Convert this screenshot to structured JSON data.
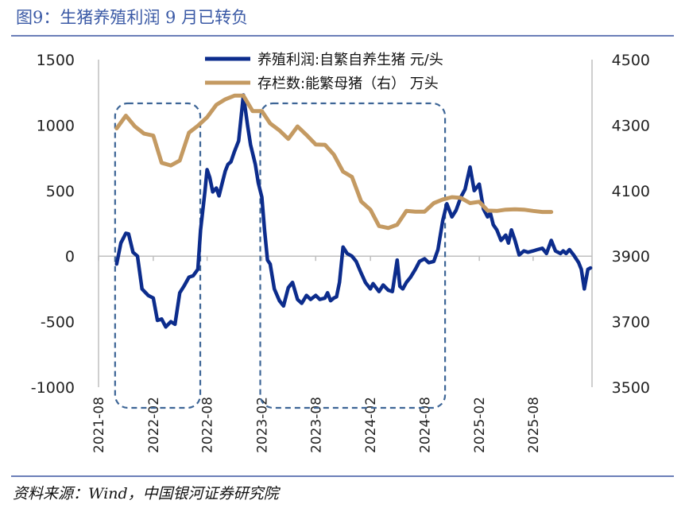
{
  "figure": {
    "title": "图9：生猪养殖利润 9 月已转负",
    "source": "资料来源：Wind，中国银河证券研究院"
  },
  "colors": {
    "profit": "#0c2c8c",
    "inventory": "#c49a62",
    "box": "#3d6596",
    "rule": "#6b7fb8"
  },
  "chart_data": {
    "type": "line",
    "title": "",
    "x_ticks": [
      "2021-08",
      "2022-02",
      "2022-08",
      "2023-02",
      "2023-08",
      "2024-02",
      "2024-08",
      "2025-02",
      "2025-08"
    ],
    "y_left": {
      "label": "",
      "range": [
        -1000,
        1500
      ],
      "ticks": [
        1500,
        1000,
        500,
        0,
        -500,
        -1000
      ]
    },
    "y_right": {
      "label": "",
      "range": [
        3500,
        4500
      ],
      "ticks": [
        4500,
        4300,
        4100,
        3900,
        3700,
        3500
      ]
    },
    "legend_position": "top-center",
    "series": [
      {
        "name": "养殖利润:自繁自养生猪 元/头",
        "axis": "left",
        "color": "#0c2c8c",
        "points": [
          [
            "2021-10",
            -60
          ],
          [
            "2021-10-15",
            100
          ],
          [
            "2021-11",
            175
          ],
          [
            "2021-11-10",
            170
          ],
          [
            "2021-11-25",
            30
          ],
          [
            "2021-12-10",
            0
          ],
          [
            "2021-12-25",
            -250
          ],
          [
            "2022-01-15",
            -300
          ],
          [
            "2022-02",
            -320
          ],
          [
            "2022-02-15",
            -490
          ],
          [
            "2022-03",
            -480
          ],
          [
            "2022-03-15",
            -540
          ],
          [
            "2022-04",
            -500
          ],
          [
            "2022-04-15",
            -520
          ],
          [
            "2022-05",
            -280
          ],
          [
            "2022-05-15",
            -230
          ],
          [
            "2022-06",
            -160
          ],
          [
            "2022-06-15",
            -150
          ],
          [
            "2022-07",
            -100
          ],
          [
            "2022-07-10",
            200
          ],
          [
            "2022-07-25",
            500
          ],
          [
            "2022-08",
            660
          ],
          [
            "2022-08-10",
            600
          ],
          [
            "2022-08-20",
            490
          ],
          [
            "2022-09",
            520
          ],
          [
            "2022-09-10",
            460
          ],
          [
            "2022-09-20",
            550
          ],
          [
            "2022-10",
            650
          ],
          [
            "2022-10-10",
            700
          ],
          [
            "2022-10-20",
            720
          ],
          [
            "2022-11",
            800
          ],
          [
            "2022-11-15",
            880
          ],
          [
            "2022-12",
            1230
          ],
          [
            "2022-12-15",
            1000
          ],
          [
            "2022-12-25",
            850
          ],
          [
            "2023-01-10",
            700
          ],
          [
            "2023-01-20",
            560
          ],
          [
            "2023-02",
            450
          ],
          [
            "2023-02-10",
            200
          ],
          [
            "2023-02-20",
            -30
          ],
          [
            "2023-03",
            -60
          ],
          [
            "2023-03-15",
            -250
          ],
          [
            "2023-04",
            -340
          ],
          [
            "2023-04-15",
            -380
          ],
          [
            "2023-05",
            -240
          ],
          [
            "2023-05-15",
            -200
          ],
          [
            "2023-06",
            -330
          ],
          [
            "2023-06-15",
            -360
          ],
          [
            "2023-07",
            -300
          ],
          [
            "2023-07-15",
            -330
          ],
          [
            "2023-08",
            -300
          ],
          [
            "2023-08-15",
            -330
          ],
          [
            "2023-09",
            -320
          ],
          [
            "2023-09-10",
            -280
          ],
          [
            "2023-09-20",
            -340
          ],
          [
            "2023-10",
            -320
          ],
          [
            "2023-10-10",
            -310
          ],
          [
            "2023-10-20",
            -200
          ],
          [
            "2023-11",
            70
          ],
          [
            "2023-11-15",
            20
          ],
          [
            "2023-12",
            0
          ],
          [
            "2023-12-15",
            -40
          ],
          [
            "2024-01",
            -130
          ],
          [
            "2024-01-15",
            -200
          ],
          [
            "2024-02",
            -250
          ],
          [
            "2024-02-10",
            -210
          ],
          [
            "2024-02-20",
            -240
          ],
          [
            "2024-03",
            -270
          ],
          [
            "2024-03-15",
            -220
          ],
          [
            "2024-04",
            -260
          ],
          [
            "2024-04-15",
            -270
          ],
          [
            "2024-05",
            -30
          ],
          [
            "2024-05-10",
            -230
          ],
          [
            "2024-05-20",
            -250
          ],
          [
            "2024-06",
            -200
          ],
          [
            "2024-06-15",
            -160
          ],
          [
            "2024-07",
            -100
          ],
          [
            "2024-07-15",
            -40
          ],
          [
            "2024-08",
            -20
          ],
          [
            "2024-08-15",
            -50
          ],
          [
            "2024-09",
            -40
          ],
          [
            "2024-09-15",
            50
          ],
          [
            "2024-10",
            270
          ],
          [
            "2024-10-15",
            400
          ],
          [
            "2024-11",
            300
          ],
          [
            "2024-11-15",
            350
          ],
          [
            "2024-12",
            450
          ],
          [
            "2024-12-15",
            510
          ],
          [
            "2025-01",
            680
          ],
          [
            "2025-01-15",
            500
          ],
          [
            "2025-02",
            550
          ],
          [
            "2025-02-15",
            360
          ],
          [
            "2025-03",
            300
          ],
          [
            "2025-03-10",
            330
          ],
          [
            "2025-03-20",
            240
          ],
          [
            "2025-04",
            200
          ],
          [
            "2025-04-15",
            120
          ],
          [
            "2025-05",
            160
          ],
          [
            "2025-05-10",
            100
          ],
          [
            "2025-05-20",
            200
          ],
          [
            "2025-06",
            120
          ],
          [
            "2025-06-15",
            10
          ],
          [
            "2025-07",
            40
          ],
          [
            "2025-07-15",
            30
          ],
          [
            "2025-08",
            40
          ],
          [
            "2025-08-15",
            50
          ],
          [
            "2025-09",
            60
          ],
          [
            "2025-09-15",
            20
          ],
          [
            "2025-10",
            120
          ],
          [
            "2025-10-15",
            40
          ],
          [
            "2025-11",
            20
          ],
          [
            "2025-11-10",
            40
          ],
          [
            "2025-11-20",
            20
          ],
          [
            "2025-12",
            50
          ],
          [
            "2025-12-15",
            10
          ],
          [
            "2026-01",
            -50
          ],
          [
            "2026-01-10",
            -100
          ],
          [
            "2026-01-20",
            -250
          ],
          [
            "2026-02",
            -100
          ],
          [
            "2026-02-10",
            -90
          ]
        ]
      },
      {
        "name": "存栏数:能繁母猪（右） 万头",
        "axis": "right",
        "color": "#c49a62",
        "points": [
          [
            "2021-10",
            4290
          ],
          [
            "2021-11",
            4329
          ],
          [
            "2021-12",
            4296
          ],
          [
            "2022-01",
            4274
          ],
          [
            "2022-02",
            4268
          ],
          [
            "2022-03",
            4185
          ],
          [
            "2022-04",
            4177
          ],
          [
            "2022-05",
            4192
          ],
          [
            "2022-06",
            4277
          ],
          [
            "2022-07",
            4298
          ],
          [
            "2022-08",
            4324
          ],
          [
            "2022-09",
            4362
          ],
          [
            "2022-10",
            4379
          ],
          [
            "2022-11",
            4390
          ],
          [
            "2022-12",
            4390
          ],
          [
            "2023-01",
            4343
          ],
          [
            "2023-02",
            4343
          ],
          [
            "2023-03",
            4305
          ],
          [
            "2023-04",
            4284
          ],
          [
            "2023-05",
            4258
          ],
          [
            "2023-06",
            4296
          ],
          [
            "2023-07",
            4270
          ],
          [
            "2023-08",
            4241
          ],
          [
            "2023-09",
            4240
          ],
          [
            "2023-10",
            4210
          ],
          [
            "2023-11",
            4158
          ],
          [
            "2023-12",
            4142
          ],
          [
            "2024-01",
            4067
          ],
          [
            "2024-02",
            4042
          ],
          [
            "2024-03",
            3992
          ],
          [
            "2024-04",
            3986
          ],
          [
            "2024-05",
            3996
          ],
          [
            "2024-06",
            4038
          ],
          [
            "2024-07",
            4036
          ],
          [
            "2024-08",
            4036
          ],
          [
            "2024-09",
            4062
          ],
          [
            "2024-10",
            4073
          ],
          [
            "2024-11",
            4080
          ],
          [
            "2024-12",
            4078
          ],
          [
            "2025-01",
            4062
          ],
          [
            "2025-02",
            4066
          ],
          [
            "2025-03",
            4039
          ],
          [
            "2025-04",
            4038
          ],
          [
            "2025-05",
            4042
          ],
          [
            "2025-06",
            4043
          ],
          [
            "2025-07",
            4042
          ],
          [
            "2025-08",
            4038
          ],
          [
            "2025-09",
            4035
          ],
          [
            "2025-10",
            4035
          ]
        ]
      }
    ],
    "highlight_regions": [
      {
        "start": "2021-10",
        "end": "2022-07"
      },
      {
        "start": "2023-02",
        "end": "2024-10"
      }
    ]
  }
}
